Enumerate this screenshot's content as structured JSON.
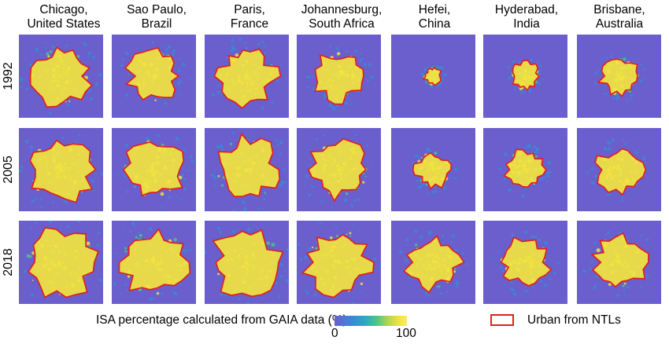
{
  "columns": [
    {
      "line1": "Chicago,",
      "line2": "United States"
    },
    {
      "line1": "Sao Paulo,",
      "line2": "Brazil"
    },
    {
      "line1": "Paris,",
      "line2": "France"
    },
    {
      "line1": "Johannesburg,",
      "line2": "South Africa"
    },
    {
      "line1": "Hefei,",
      "line2": "China"
    },
    {
      "line1": "Hyderabad,",
      "line2": "India"
    },
    {
      "line1": "Brisbane,",
      "line2": "Australia"
    }
  ],
  "rows": [
    "1992",
    "2005",
    "2018"
  ],
  "legend": {
    "colorbar_label": "ISA percentage calculated from GAIA data (%)",
    "min_label": "0",
    "max_label": "100",
    "urban_label": "Urban from NTLs",
    "urban_color": "#e02020"
  },
  "colors": {
    "background": "#6a5fcc",
    "low": "#3f84d8",
    "mid": "#4cc38a",
    "high": "#f3e43f",
    "outline": "#e02020"
  }
}
